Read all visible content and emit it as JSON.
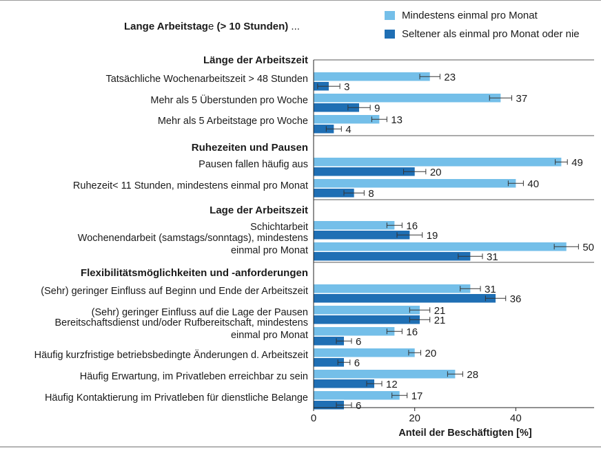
{
  "chart_data": {
    "type": "bar",
    "orientation": "horizontal",
    "title": "Lange Arbeitstage (> 10 Stunden) ...",
    "xlabel": "Anteil der Beschäftigten [%]",
    "xlim": [
      0,
      55
    ],
    "xticks": [
      0,
      20,
      40
    ],
    "legend_position": "top-right",
    "colors": {
      "series_1": "#74bfe9",
      "series_2": "#1f6fb4",
      "error_bar": "#333333",
      "frame": "#9a9a9a"
    },
    "series": [
      {
        "name": "Mindestens einmal pro Monat"
      },
      {
        "name": "Seltener als einmal pro Monat oder nie"
      }
    ],
    "groups": [
      {
        "label": "Länge der Arbeitszeit",
        "items": [
          {
            "label": [
              "Tatsächliche Wochenarbeitszeit > 48 Stunden"
            ],
            "values": [
              23,
              3
            ]
          },
          {
            "label": [
              "Mehr als 5 Überstunden pro Woche"
            ],
            "values": [
              37,
              9
            ]
          },
          {
            "label": [
              "Mehr als 5 Arbeitstage pro Woche"
            ],
            "values": [
              13,
              4
            ]
          }
        ]
      },
      {
        "label": "Ruhezeiten und Pausen",
        "items": [
          {
            "label": [
              "Pausen fallen häufig aus"
            ],
            "values": [
              49,
              20
            ]
          },
          {
            "label": [
              "Ruhezeit< 11 Stunden, mindestens einmal pro Monat"
            ],
            "values": [
              40,
              8
            ]
          }
        ]
      },
      {
        "label": "Lage der Arbeitszeit",
        "items": [
          {
            "label": [
              "Schichtarbeit"
            ],
            "values": [
              16,
              19
            ]
          },
          {
            "label": [
              "Wochenendarbeit (samstags/sonntags), mindestens",
              "einmal pro Monat"
            ],
            "values": [
              50,
              31
            ]
          }
        ]
      },
      {
        "label": "Flexibilitätsmöglichkeiten und -anforderungen",
        "items": [
          {
            "label": [
              "(Sehr) geringer Einfluss auf Beginn und Ende der Arbeitszeit"
            ],
            "values": [
              31,
              36
            ]
          },
          {
            "label": [
              "(Sehr) geringer Einfluss auf die Lage der Pausen"
            ],
            "values": [
              21,
              21
            ]
          },
          {
            "label": [
              "Bereitschaftsdienst und/oder Rufbereitschaft, mindestens",
              "einmal pro Monat"
            ],
            "values": [
              16,
              6
            ]
          },
          {
            "label": [
              "Häufig kurzfristige betriebsbedingte Änderungen d. Arbeitszeit"
            ],
            "values": [
              20,
              6
            ]
          },
          {
            "label": [
              "Häufig Erwartung, im Privatleben erreichbar zu sein"
            ],
            "values": [
              28,
              12
            ]
          },
          {
            "label": [
              "Häufig Kontaktierung im Privatleben für dienstliche Belange"
            ],
            "values": [
              17,
              6
            ]
          }
        ]
      }
    ]
  }
}
